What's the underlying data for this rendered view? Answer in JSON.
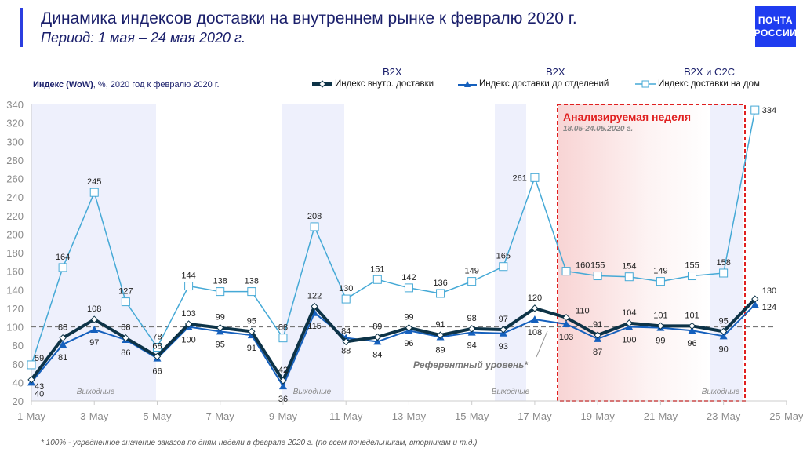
{
  "header": {
    "title": "Динамика индексов доставки на внутреннем рынке к февралю 2020 г.",
    "subtitle": "Период: 1 мая – 24 мая 2020 г.",
    "logo_line1": "ПОЧТА",
    "logo_line2": "РОССИИ"
  },
  "axis_caption_bold": "Индекс (WoW)",
  "axis_caption_rest": ", %, 2020 год к февралю 2020 г.",
  "footnote": "* 100% - усредненное значение заказов по дням недели в феврале 2020 г. (по всем понедельникам, вторникам и т.д.)",
  "chart_data": {
    "type": "line",
    "title": "Динамика индексов доставки на внутреннем рынке к февралю 2020 г.",
    "ylabel": "Индекс (WoW), %, 2020 год к февралю 2020 г.",
    "ylim": [
      20,
      340
    ],
    "yticks": [
      "20",
      "40",
      "60",
      "80",
      "100",
      "120",
      "140",
      "160",
      "180",
      "200",
      "220",
      "240",
      "260",
      "280",
      "300",
      "320",
      "340"
    ],
    "xticks": [
      "1-May",
      "3-May",
      "5-May",
      "7-May",
      "9-May",
      "11-May",
      "13-May",
      "15-May",
      "17-May",
      "19-May",
      "21-May",
      "23-May",
      "25-May"
    ],
    "x_days": [
      1,
      2,
      3,
      4,
      5,
      6,
      7,
      8,
      9,
      10,
      11,
      12,
      13,
      14,
      15,
      16,
      17,
      18,
      19,
      20,
      21,
      22,
      23,
      24
    ],
    "series": [
      {
        "name": "Индекс внутр. доставки",
        "group": "B2X",
        "color": "#0d3347",
        "values": [
          43,
          88,
          108,
          88,
          68,
          103,
          99,
          95,
          42,
          122,
          84,
          89,
          99,
          91,
          98,
          97,
          120,
          110,
          91,
          104,
          101,
          101,
          95,
          130
        ]
      },
      {
        "name": "Индекс доставки до отделений",
        "group": "B2X",
        "color": "#1560bd",
        "values": [
          40,
          81,
          97,
          86,
          66,
          100,
          95,
          91,
          36,
          115,
          88,
          84,
          96,
          89,
          94,
          93,
          108,
          103,
          87,
          100,
          99,
          96,
          90,
          124
        ]
      },
      {
        "name": "Индекс доставки на дом",
        "group": "B2X и C2C",
        "color": "#45a9d6",
        "values": [
          59,
          164,
          245,
          127,
          78,
          144,
          138,
          138,
          88,
          208,
          130,
          151,
          142,
          136,
          149,
          165,
          261,
          160,
          155,
          154,
          149,
          155,
          158,
          334
        ]
      }
    ],
    "reference_level": 100,
    "reference_label": "Референтный уровень*",
    "weekend_label": "Выходные",
    "highlight": {
      "title": "Анализируемая неделя",
      "dates": "18.05-24.05.2020 г.",
      "color": "#e02020"
    },
    "grid": false,
    "legend_position": "top-right"
  }
}
